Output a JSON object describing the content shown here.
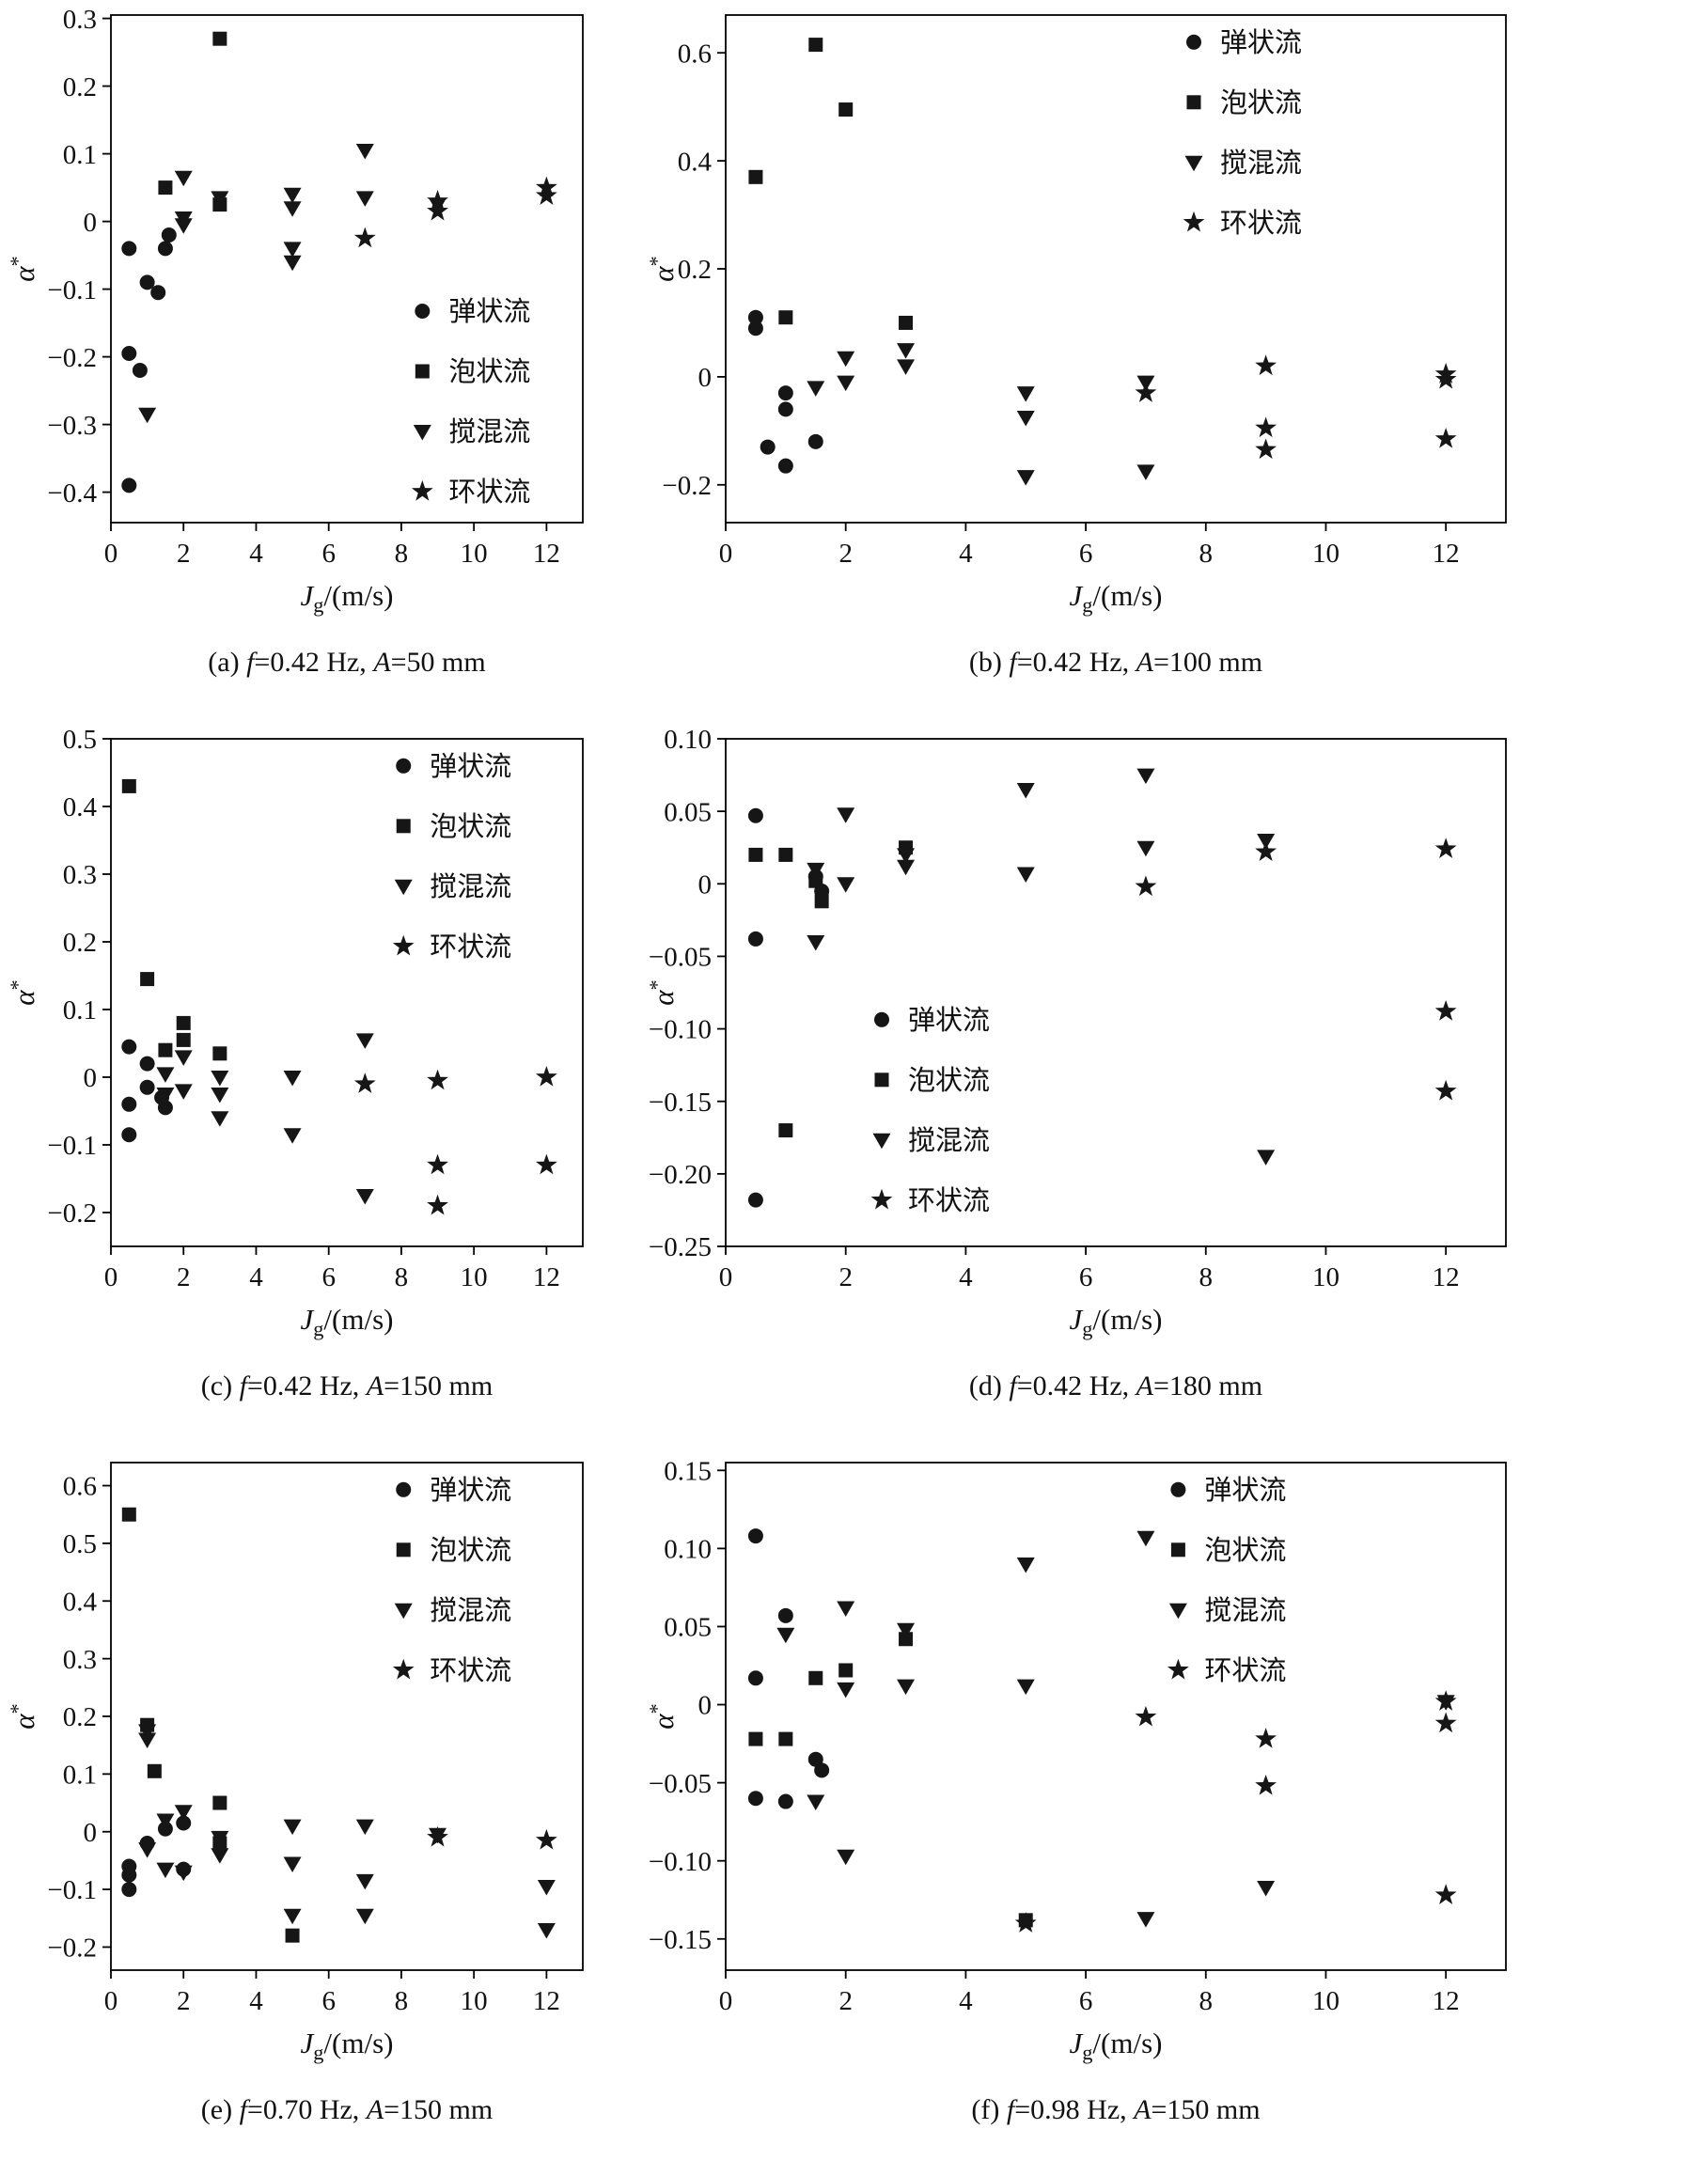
{
  "figure": {
    "marker_color": "#161616",
    "axis_color": "#000000",
    "series_legend": [
      "弹状流",
      "泡状流",
      "搅混流",
      "环状流"
    ]
  },
  "chart_data": [
    {
      "id": "a",
      "type": "scatter",
      "caption": "(a) f=0.42 Hz, A=50 mm",
      "xlabel": "J_g/(m/s)",
      "ylabel": "α*",
      "xlim": [
        0,
        13
      ],
      "xticks": [
        0,
        2,
        4,
        6,
        8,
        10,
        12
      ],
      "ylim": [
        -0.445,
        0.305
      ],
      "yticks": [
        -0.4,
        -0.3,
        -0.2,
        -0.1,
        0,
        0.1,
        0.2,
        0.3
      ],
      "ydec": 1,
      "legend": [
        0.66,
        0.55
      ],
      "series": [
        {
          "name": "弹状流",
          "marker": "circle",
          "points": [
            [
              0.5,
              -0.04
            ],
            [
              0.5,
              -0.195
            ],
            [
              0.8,
              -0.22
            ],
            [
              0.5,
              -0.39
            ],
            [
              1,
              -0.09
            ],
            [
              1.3,
              -0.105
            ],
            [
              1.5,
              -0.04
            ],
            [
              1.6,
              -0.02
            ]
          ]
        },
        {
          "name": "泡状流",
          "marker": "square",
          "points": [
            [
              1.5,
              0.05
            ],
            [
              3,
              0.27
            ],
            [
              3,
              0.025
            ]
          ]
        },
        {
          "name": "搅混流",
          "marker": "triangle-down",
          "points": [
            [
              1,
              -0.285
            ],
            [
              2,
              0.065
            ],
            [
              2,
              0.005
            ],
            [
              2,
              -0.005
            ],
            [
              3,
              0.035
            ],
            [
              5,
              0.04
            ],
            [
              5,
              0.02
            ],
            [
              5,
              -0.04
            ],
            [
              5,
              -0.06
            ],
            [
              7,
              0.105
            ],
            [
              7,
              0.035
            ],
            [
              9,
              0.025
            ]
          ]
        },
        {
          "name": "环状流",
          "marker": "star",
          "points": [
            [
              7,
              -0.025
            ],
            [
              9,
              0.03
            ],
            [
              9,
              0.015
            ],
            [
              12,
              0.05
            ],
            [
              12,
              0.038
            ]
          ]
        }
      ]
    },
    {
      "id": "b",
      "type": "scatter",
      "caption": "(b) f=0.42 Hz, A=100 mm",
      "xlabel": "J_g/(m/s)",
      "ylabel": "α*",
      "xlim": [
        0,
        13
      ],
      "xticks": [
        0,
        2,
        4,
        6,
        8,
        10,
        12
      ],
      "ylim": [
        -0.27,
        0.67
      ],
      "yticks": [
        -0.2,
        0,
        0.2,
        0.4,
        0.6
      ],
      "ydec": 1,
      "legend": [
        0.6,
        0.02
      ],
      "series": [
        {
          "name": "弹状流",
          "marker": "circle",
          "points": [
            [
              0.5,
              0.11
            ],
            [
              0.5,
              0.09
            ],
            [
              1,
              -0.03
            ],
            [
              1,
              -0.06
            ],
            [
              0.7,
              -0.13
            ],
            [
              1,
              -0.165
            ],
            [
              1.5,
              -0.12
            ]
          ]
        },
        {
          "name": "泡状流",
          "marker": "square",
          "points": [
            [
              0.5,
              0.37
            ],
            [
              1,
              0.11
            ],
            [
              1.5,
              0.615
            ],
            [
              2,
              0.495
            ],
            [
              3,
              0.1
            ]
          ]
        },
        {
          "name": "搅混流",
          "marker": "triangle-down",
          "points": [
            [
              1.5,
              -0.02
            ],
            [
              2,
              0.035
            ],
            [
              2,
              -0.01
            ],
            [
              3,
              0.05
            ],
            [
              3,
              0.02
            ],
            [
              5,
              -0.03
            ],
            [
              5,
              -0.075
            ],
            [
              5,
              -0.185
            ],
            [
              7,
              -0.01
            ],
            [
              7,
              -0.175
            ]
          ]
        },
        {
          "name": "环状流",
          "marker": "star",
          "points": [
            [
              7,
              -0.03
            ],
            [
              9,
              0.02
            ],
            [
              9,
              -0.095
            ],
            [
              9,
              -0.135
            ],
            [
              12,
              0.005
            ],
            [
              12,
              -0.005
            ],
            [
              12,
              -0.115
            ]
          ]
        }
      ]
    },
    {
      "id": "c",
      "type": "scatter",
      "caption": "(c) f=0.42 Hz, A=150 mm",
      "xlabel": "J_g/(m/s)",
      "ylabel": "α*",
      "xlim": [
        0,
        13
      ],
      "xticks": [
        0,
        2,
        4,
        6,
        8,
        10,
        12
      ],
      "ylim": [
        -0.25,
        0.5
      ],
      "yticks": [
        -0.2,
        -0.1,
        0,
        0.1,
        0.2,
        0.3,
        0.4,
        0.5
      ],
      "ydec": 1,
      "legend": [
        0.62,
        0.02
      ],
      "series": [
        {
          "name": "弹状流",
          "marker": "circle",
          "points": [
            [
              0.5,
              0.045
            ],
            [
              0.5,
              -0.04
            ],
            [
              0.5,
              -0.085
            ],
            [
              1,
              0.02
            ],
            [
              1,
              -0.015
            ],
            [
              1.4,
              -0.03
            ],
            [
              1.5,
              -0.045
            ]
          ]
        },
        {
          "name": "泡状流",
          "marker": "square",
          "points": [
            [
              0.5,
              0.43
            ],
            [
              1,
              0.145
            ],
            [
              1.5,
              0.04
            ],
            [
              2,
              0.08
            ],
            [
              2,
              0.055
            ],
            [
              3,
              0.035
            ]
          ]
        },
        {
          "name": "搅混流",
          "marker": "triangle-down",
          "points": [
            [
              1.5,
              0.005
            ],
            [
              1.5,
              -0.025
            ],
            [
              2,
              0.03
            ],
            [
              2,
              -0.02
            ],
            [
              3,
              0
            ],
            [
              3,
              -0.025
            ],
            [
              3,
              -0.06
            ],
            [
              5,
              0
            ],
            [
              5,
              -0.085
            ],
            [
              7,
              0.055
            ],
            [
              7,
              -0.175
            ]
          ]
        },
        {
          "name": "环状流",
          "marker": "star",
          "points": [
            [
              7,
              -0.01
            ],
            [
              9,
              -0.005
            ],
            [
              9,
              -0.13
            ],
            [
              9,
              -0.19
            ],
            [
              12,
              0
            ],
            [
              12,
              -0.13
            ]
          ]
        }
      ]
    },
    {
      "id": "d",
      "type": "scatter",
      "caption": "(d) f=0.42 Hz, A=180 mm",
      "xlabel": "J_g/(m/s)",
      "ylabel": "α*",
      "xlim": [
        0,
        13
      ],
      "xticks": [
        0,
        2,
        4,
        6,
        8,
        10,
        12
      ],
      "ylim": [
        -0.25,
        0.1
      ],
      "yticks": [
        -0.25,
        -0.2,
        -0.15,
        -0.1,
        -0.05,
        0,
        0.05,
        0.1
      ],
      "ydec": 2,
      "legend": [
        0.2,
        0.52
      ],
      "series": [
        {
          "name": "弹状流",
          "marker": "circle",
          "points": [
            [
              0.5,
              0.047
            ],
            [
              0.5,
              -0.038
            ],
            [
              0.5,
              -0.218
            ],
            [
              1.5,
              0.005
            ],
            [
              1.6,
              -0.005
            ]
          ]
        },
        {
          "name": "泡状流",
          "marker": "square",
          "points": [
            [
              0.5,
              0.02
            ],
            [
              1,
              0.02
            ],
            [
              1,
              -0.17
            ],
            [
              1.5,
              0.002
            ],
            [
              1.6,
              -0.012
            ],
            [
              3,
              0.025
            ]
          ]
        },
        {
          "name": "搅混流",
          "marker": "triangle-down",
          "points": [
            [
              1.5,
              0.01
            ],
            [
              1.5,
              -0.04
            ],
            [
              2,
              0.048
            ],
            [
              2,
              0
            ],
            [
              3,
              0.02
            ],
            [
              3,
              0.012
            ],
            [
              5,
              0.065
            ],
            [
              5,
              0.007
            ],
            [
              7,
              0.075
            ],
            [
              7,
              0.025
            ],
            [
              9,
              0.03
            ],
            [
              9,
              -0.188
            ]
          ]
        },
        {
          "name": "环状流",
          "marker": "star",
          "points": [
            [
              7,
              -0.002
            ],
            [
              9,
              0.022
            ],
            [
              12,
              0.024
            ],
            [
              12,
              -0.088
            ],
            [
              12,
              -0.143
            ]
          ]
        }
      ]
    },
    {
      "id": "e",
      "type": "scatter",
      "caption": "(e) f=0.70 Hz, A=150 mm",
      "xlabel": "J_g/(m/s)",
      "ylabel": "α*",
      "xlim": [
        0,
        13
      ],
      "xticks": [
        0,
        2,
        4,
        6,
        8,
        10,
        12
      ],
      "ylim": [
        -0.24,
        0.64
      ],
      "yticks": [
        -0.2,
        -0.1,
        0,
        0.1,
        0.2,
        0.3,
        0.4,
        0.5,
        0.6
      ],
      "ydec": 1,
      "legend": [
        0.62,
        0.02
      ],
      "series": [
        {
          "name": "弹状流",
          "marker": "circle",
          "points": [
            [
              0.5,
              -0.06
            ],
            [
              0.5,
              -0.075
            ],
            [
              0.5,
              -0.1
            ],
            [
              1,
              -0.02
            ],
            [
              1.5,
              0.005
            ],
            [
              2,
              0.015
            ],
            [
              2,
              -0.065
            ]
          ]
        },
        {
          "name": "泡状流",
          "marker": "square",
          "points": [
            [
              0.5,
              0.55
            ],
            [
              1,
              0.185
            ],
            [
              1.2,
              0.105
            ],
            [
              3,
              0.05
            ],
            [
              3,
              -0.02
            ],
            [
              5,
              -0.18
            ]
          ]
        },
        {
          "name": "搅混流",
          "marker": "triangle-down",
          "points": [
            [
              1,
              0.175
            ],
            [
              1,
              0.16
            ],
            [
              1,
              -0.03
            ],
            [
              1.5,
              0.02
            ],
            [
              1.5,
              -0.065
            ],
            [
              2,
              0.035
            ],
            [
              2,
              -0.07
            ],
            [
              3,
              -0.01
            ],
            [
              3,
              -0.04
            ],
            [
              5,
              0.01
            ],
            [
              5,
              -0.055
            ],
            [
              5,
              -0.145
            ],
            [
              7,
              0.01
            ],
            [
              7,
              -0.085
            ],
            [
              7,
              -0.145
            ],
            [
              9,
              -0.005
            ],
            [
              12,
              -0.095
            ],
            [
              12,
              -0.17
            ]
          ]
        },
        {
          "name": "环状流",
          "marker": "star",
          "points": [
            [
              9,
              -0.01
            ],
            [
              12,
              -0.015
            ]
          ]
        }
      ]
    },
    {
      "id": "f",
      "type": "scatter",
      "caption": "(f) f=0.98 Hz, A=150 mm",
      "xlabel": "J_g/(m/s)",
      "ylabel": "α*",
      "xlim": [
        0,
        13
      ],
      "xticks": [
        0,
        2,
        4,
        6,
        8,
        10,
        12
      ],
      "ylim": [
        -0.17,
        0.155
      ],
      "yticks": [
        -0.15,
        -0.1,
        -0.05,
        0,
        0.05,
        0.1,
        0.15
      ],
      "ydec": 2,
      "legend": [
        0.58,
        0.02
      ],
      "series": [
        {
          "name": "弹状流",
          "marker": "circle",
          "points": [
            [
              0.5,
              0.108
            ],
            [
              0.5,
              0.017
            ],
            [
              0.5,
              -0.06
            ],
            [
              1,
              0.057
            ],
            [
              1,
              -0.062
            ],
            [
              1.5,
              -0.035
            ],
            [
              1.6,
              -0.042
            ]
          ]
        },
        {
          "name": "泡状流",
          "marker": "square",
          "points": [
            [
              0.5,
              -0.022
            ],
            [
              1,
              -0.022
            ],
            [
              1.5,
              0.017
            ],
            [
              2,
              0.022
            ],
            [
              3,
              0.042
            ],
            [
              5,
              -0.138
            ]
          ]
        },
        {
          "name": "搅混流",
          "marker": "triangle-down",
          "points": [
            [
              1,
              0.045
            ],
            [
              1.5,
              -0.062
            ],
            [
              2,
              0.062
            ],
            [
              2,
              0.01
            ],
            [
              2,
              -0.097
            ],
            [
              3,
              0.048
            ],
            [
              3,
              0.012
            ],
            [
              5,
              0.09
            ],
            [
              5,
              0.012
            ],
            [
              7,
              0.107
            ],
            [
              7,
              -0.137
            ],
            [
              9,
              -0.117
            ],
            [
              12,
              0.002
            ]
          ]
        },
        {
          "name": "环状流",
          "marker": "star",
          "points": [
            [
              5,
              -0.14
            ],
            [
              7,
              -0.008
            ],
            [
              9,
              -0.022
            ],
            [
              9,
              -0.052
            ],
            [
              12,
              0.002
            ],
            [
              12,
              -0.012
            ],
            [
              12,
              -0.122
            ]
          ]
        }
      ]
    }
  ]
}
